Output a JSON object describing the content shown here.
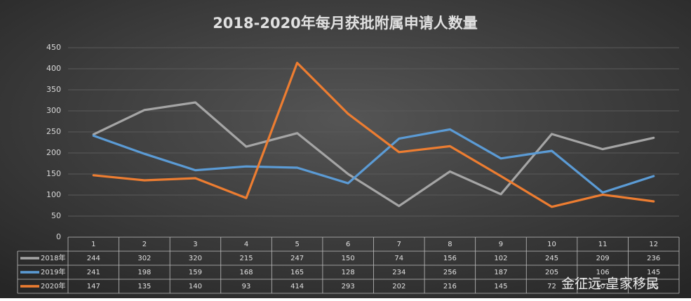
{
  "chart_data": {
    "type": "line",
    "title": "2018-2020年每月获批附属申请人数量",
    "categories": [
      "1",
      "2",
      "3",
      "4",
      "5",
      "6",
      "7",
      "8",
      "9",
      "10",
      "11",
      "12"
    ],
    "series": [
      {
        "name": "2018年",
        "color": "#a5a5a5",
        "values": [
          244,
          302,
          320,
          215,
          247,
          150,
          74,
          156,
          102,
          245,
          209,
          236
        ]
      },
      {
        "name": "2019年",
        "color": "#5b9bd5",
        "values": [
          241,
          198,
          159,
          168,
          165,
          128,
          234,
          256,
          187,
          205,
          106,
          145
        ]
      },
      {
        "name": "2020年",
        "color": "#ed7d31",
        "values": [
          147,
          135,
          140,
          93,
          414,
          293,
          202,
          216,
          145,
          72,
          101,
          85
        ]
      }
    ],
    "ylim": [
      0,
      450
    ],
    "yticks": [
      0,
      50,
      100,
      150,
      200,
      250,
      300,
      350,
      400,
      450
    ],
    "grid": true
  },
  "watermark": "金征远-皇家移民"
}
